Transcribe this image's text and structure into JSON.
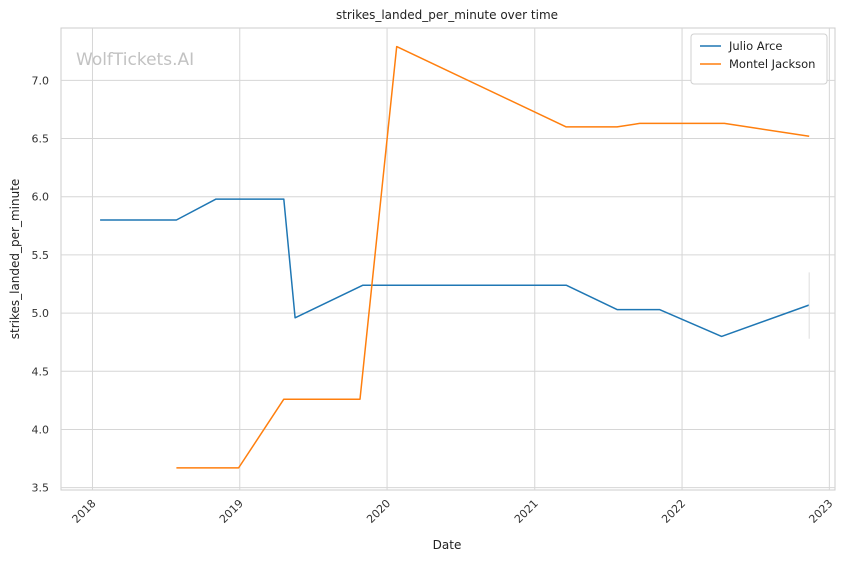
{
  "watermark": "WolfTickets.AI",
  "chart_data": {
    "type": "line",
    "title": "strikes_landed_per_minute over time",
    "xlabel": "Date",
    "ylabel": "strikes_landed_per_minute",
    "x_ticks": [
      "2018",
      "2019",
      "2020",
      "2021",
      "2022",
      "2023"
    ],
    "x_range": [
      "2017-10-15",
      "2023-01-15"
    ],
    "y_ticks": [
      "3.5",
      "4.0",
      "4.5",
      "5.0",
      "5.5",
      "6.0",
      "6.5",
      "7.0"
    ],
    "ylim": [
      3.48,
      7.45
    ],
    "grid": true,
    "legend_position": "top-right",
    "series": [
      {
        "name": "Julio Arce",
        "color": "#1f77b4",
        "points": [
          {
            "x": "2018-01-20",
            "y": 5.8
          },
          {
            "x": "2018-07-28",
            "y": 5.8
          },
          {
            "x": "2018-11-03",
            "y": 5.98
          },
          {
            "x": "2019-04-20",
            "y": 5.98
          },
          {
            "x": "2019-05-18",
            "y": 4.96
          },
          {
            "x": "2019-11-02",
            "y": 5.24
          },
          {
            "x": "2021-03-20",
            "y": 5.24
          },
          {
            "x": "2021-07-24",
            "y": 5.03
          },
          {
            "x": "2021-11-06",
            "y": 5.03
          },
          {
            "x": "2022-04-09",
            "y": 4.8
          },
          {
            "x": "2022-11-12",
            "y": 5.07
          }
        ]
      },
      {
        "name": "Montel Jackson",
        "color": "#ff7f0e",
        "points": [
          {
            "x": "2018-07-28",
            "y": 3.67
          },
          {
            "x": "2018-12-29",
            "y": 3.67
          },
          {
            "x": "2019-04-20",
            "y": 4.26
          },
          {
            "x": "2019-10-26",
            "y": 4.26
          },
          {
            "x": "2020-01-25",
            "y": 7.29
          },
          {
            "x": "2021-03-20",
            "y": 6.6
          },
          {
            "x": "2021-07-24",
            "y": 6.6
          },
          {
            "x": "2021-09-18",
            "y": 6.63
          },
          {
            "x": "2022-04-16",
            "y": 6.63
          },
          {
            "x": "2022-11-12",
            "y": 6.52
          }
        ]
      }
    ]
  }
}
